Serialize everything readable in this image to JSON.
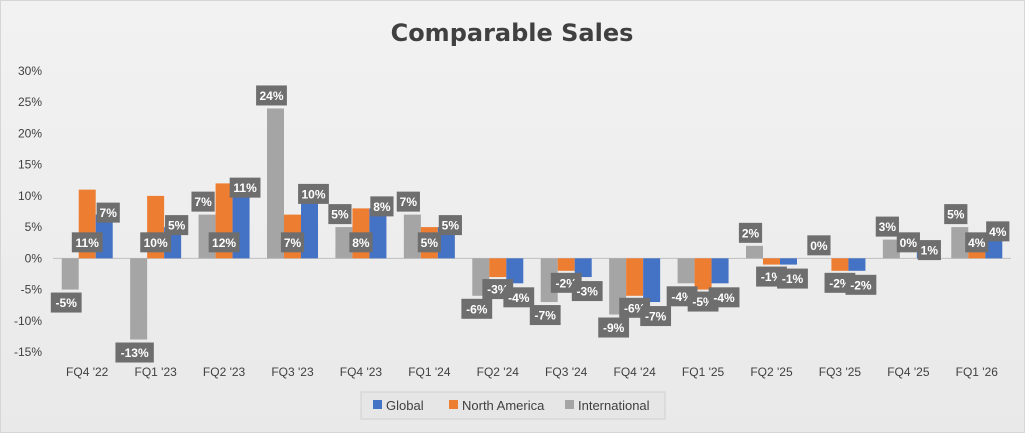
{
  "chart_data": {
    "type": "bar",
    "title": "Comparable Sales",
    "xlabel": "",
    "ylabel": "",
    "ylim": [
      -15,
      30
    ],
    "yticks": [
      30,
      25,
      20,
      15,
      10,
      5,
      0,
      -5,
      -10,
      -15
    ],
    "ytick_labels": [
      "30%",
      "25%",
      "20%",
      "15%",
      "10%",
      "5%",
      "0%",
      "-5%",
      "-10%",
      "-15%"
    ],
    "categories": [
      "FQ4 '22",
      "FQ1 '23",
      "FQ2 '23",
      "FQ3 '23",
      "FQ4 '23",
      "FQ1 '24",
      "FQ2 '24",
      "FQ3 '24",
      "FQ4 '24",
      "FQ1 '25",
      "FQ2 '25",
      "FQ3 '25",
      "FQ4 '25",
      "FQ1 '26"
    ],
    "series": [
      {
        "name": "International",
        "color": "#a5a5a5",
        "values": [
          -5,
          -13,
          7,
          24,
          5,
          7,
          -6,
          -7,
          -9,
          -4,
          2,
          0,
          3,
          5
        ],
        "labels": [
          "-5%",
          "-13%",
          "7%",
          "24%",
          "5%",
          "7%",
          "-6%",
          "-7%",
          "-9%",
          "-4%",
          "2%",
          "0%",
          "3%",
          "5%"
        ]
      },
      {
        "name": "North America",
        "color": "#ed7d31",
        "values": [
          11,
          10,
          12,
          7,
          8,
          5,
          -3,
          -2,
          -6,
          -5,
          -1,
          -2,
          0,
          4
        ],
        "labels": [
          "11%",
          "10%",
          "12%",
          "7%",
          "8%",
          "5%",
          "-3%",
          "-2%",
          "-6%",
          "-5%",
          "-1%",
          "-2%",
          "0%",
          "4%"
        ]
      },
      {
        "name": "Global",
        "color": "#4472c4",
        "values": [
          7,
          5,
          11,
          10,
          8,
          5,
          -4,
          -3,
          -7,
          -4,
          -1,
          -2,
          1,
          4
        ],
        "labels": [
          "7%",
          "5%",
          "11%",
          "10%",
          "8%",
          "5%",
          "-4%",
          "-3%",
          "-7%",
          "-4%",
          "-1%",
          "-2%",
          "1%",
          "4%"
        ]
      }
    ],
    "legend": {
      "position": "bottom",
      "entries": [
        "Global",
        "North America",
        "International"
      ]
    },
    "grid": false
  },
  "colors": {
    "label_bg": "#6e6e6e",
    "axis": "#bfbfbf"
  }
}
